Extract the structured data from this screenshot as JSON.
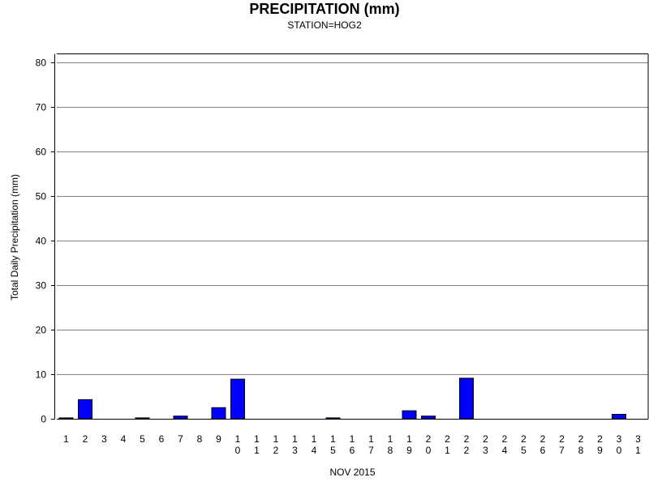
{
  "chart_data": {
    "type": "bar",
    "title": "PRECIPITATION (mm)",
    "subtitle": "STATION=HOG2",
    "xlabel": "NOV 2015",
    "ylabel": "Total Daily Precipitation (mm)",
    "ylim": [
      0,
      80
    ],
    "yticks": [
      0,
      10,
      20,
      30,
      40,
      50,
      60,
      70,
      80
    ],
    "grid": true,
    "bar_color": "#0000ff",
    "categories": [
      "1",
      "2",
      "3",
      "4",
      "5",
      "6",
      "7",
      "8",
      "9",
      "10",
      "11",
      "12",
      "13",
      "14",
      "15",
      "16",
      "17",
      "18",
      "19",
      "20",
      "21",
      "22",
      "23",
      "24",
      "25",
      "26",
      "27",
      "28",
      "29",
      "30",
      "31"
    ],
    "values": [
      0.2,
      4.3,
      0,
      0,
      0.2,
      0,
      0.6,
      0,
      2.5,
      8.9,
      0,
      0,
      0,
      0,
      0.2,
      0,
      0,
      0,
      1.8,
      0.6,
      0,
      9.1,
      0,
      0,
      0,
      0,
      0,
      0,
      0,
      1.0,
      0
    ]
  }
}
